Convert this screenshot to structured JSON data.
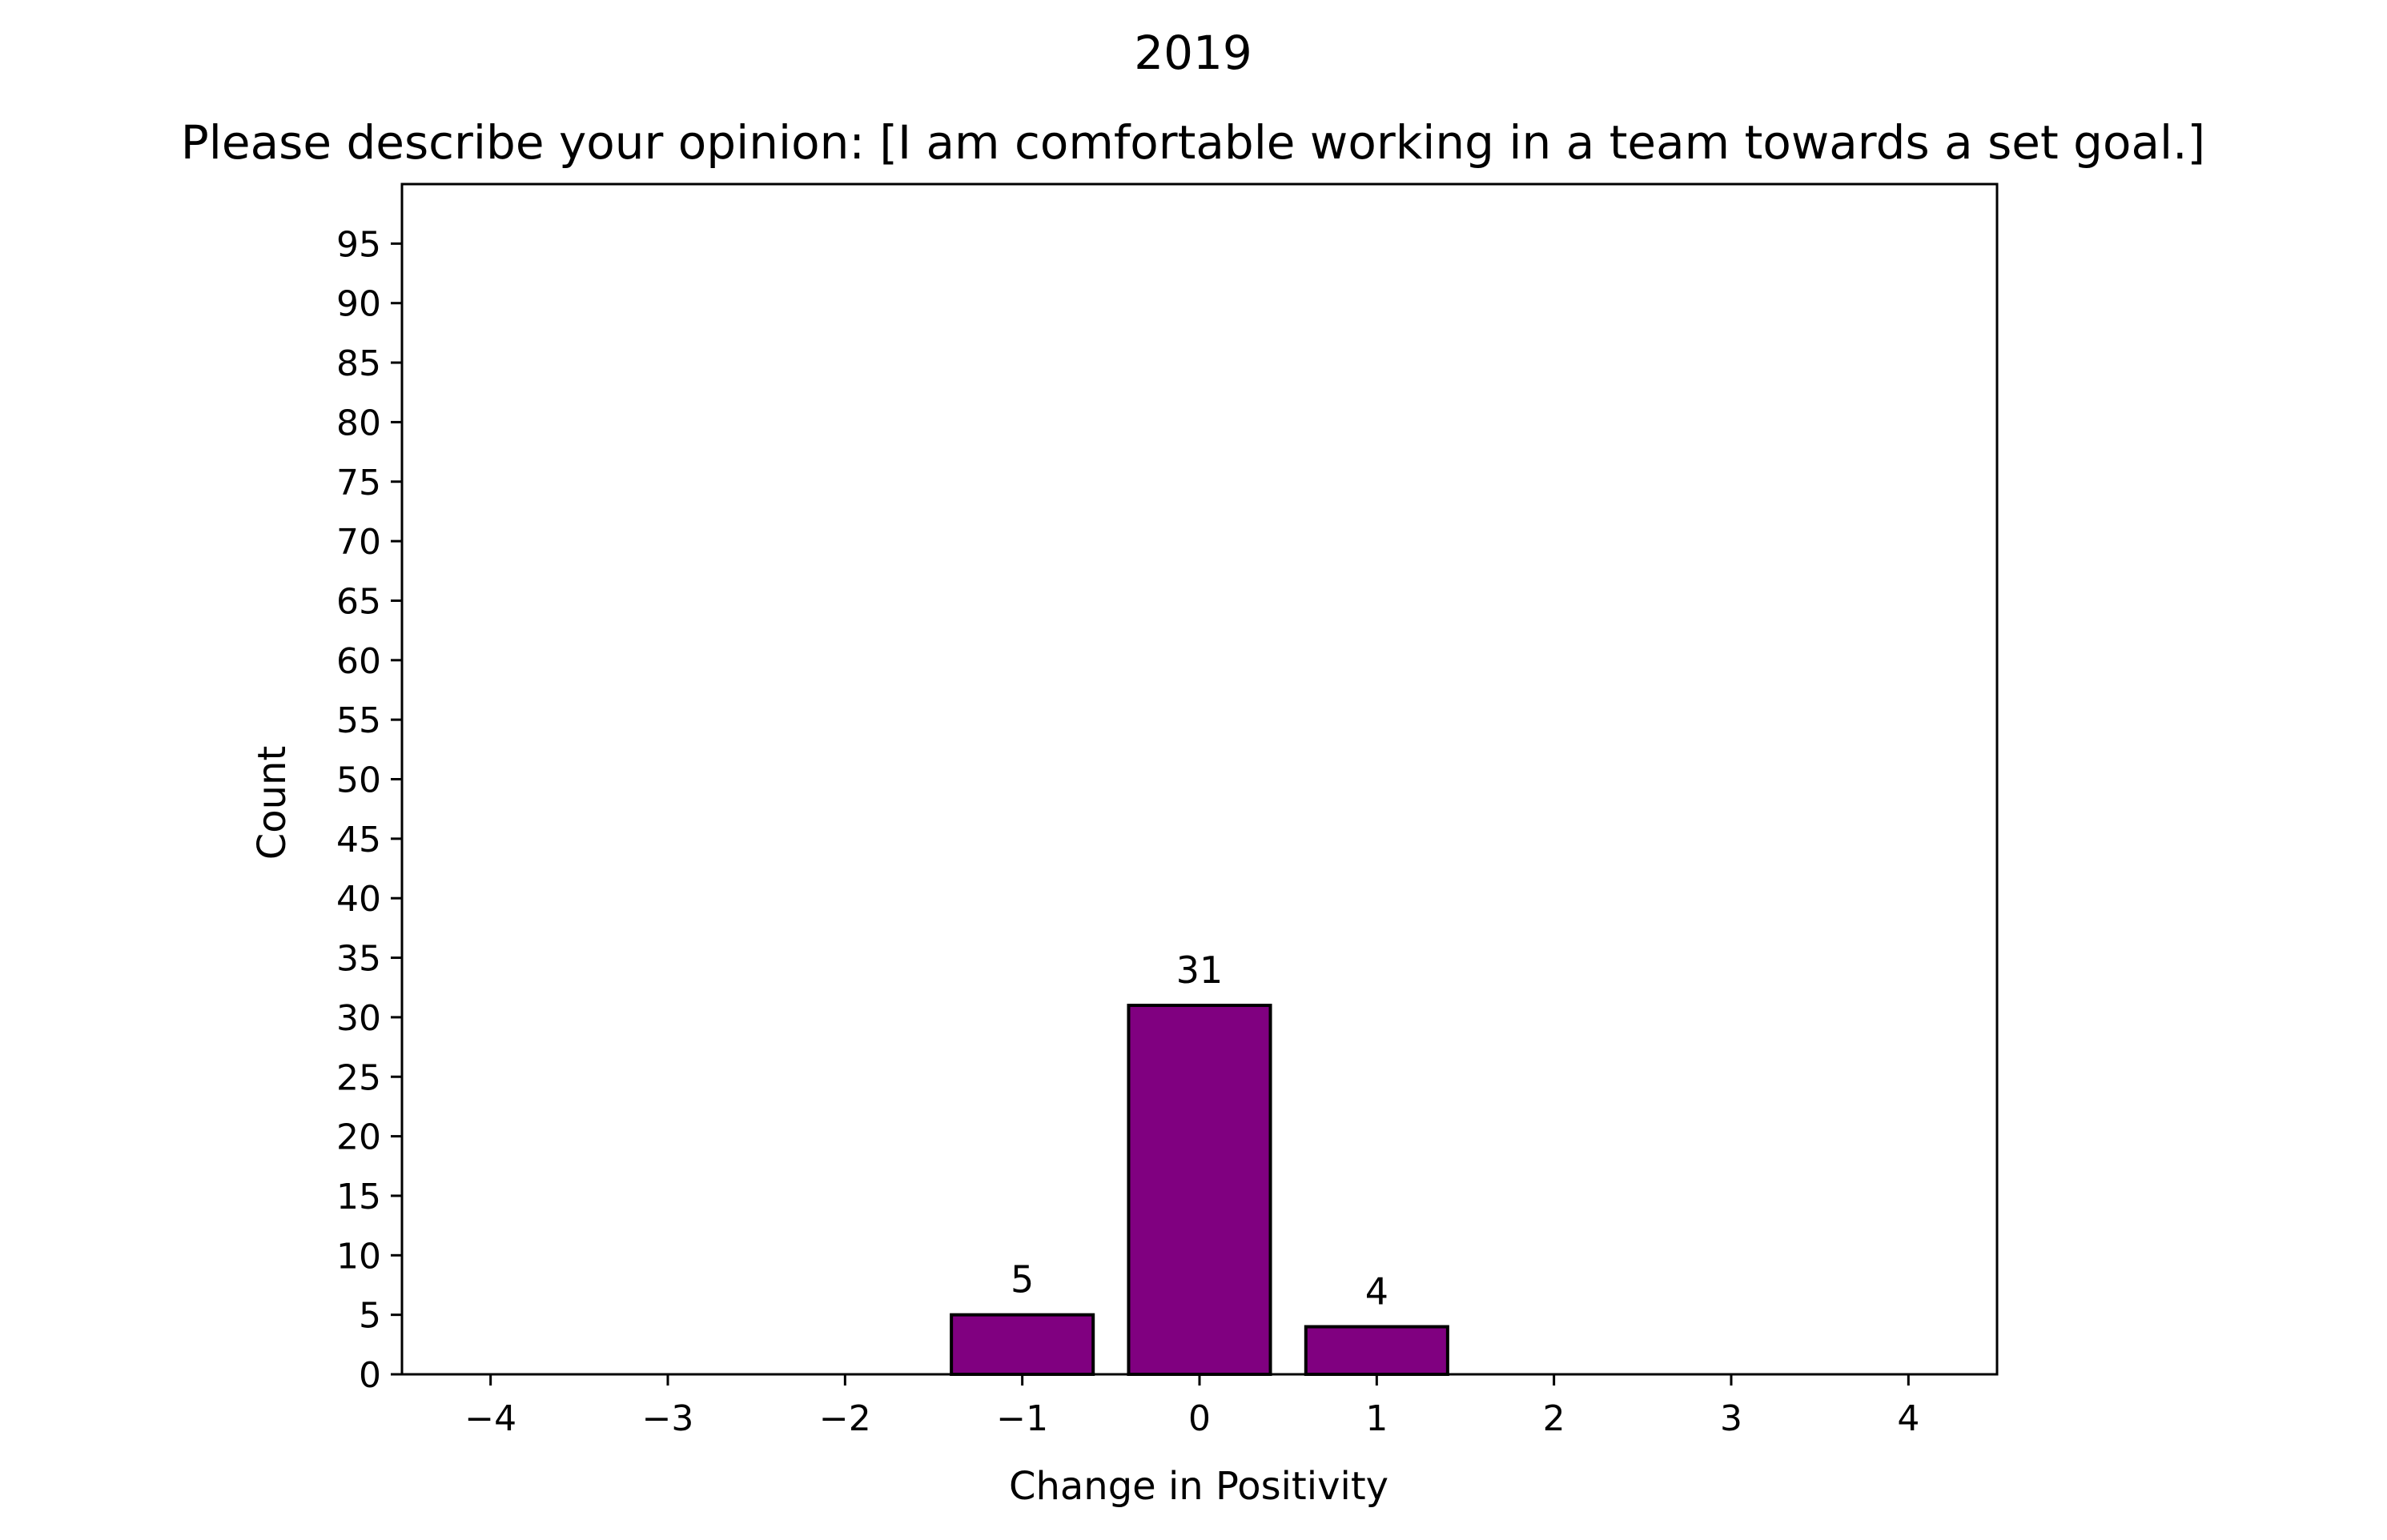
{
  "chart_data": {
    "type": "bar",
    "suptitle": "2019",
    "title": "Please describe your opinion: [I am comfortable working in a team towards a set goal.]",
    "xlabel": "Change in Positivity",
    "ylabel": "Count",
    "x": [
      -4,
      -3,
      -2,
      -1,
      0,
      1,
      2,
      3,
      4
    ],
    "values": [
      0,
      0,
      0,
      5,
      31,
      4,
      0,
      0,
      0
    ],
    "bar_labels": [
      "",
      "",
      "",
      "5",
      "31",
      "4",
      "",
      "",
      ""
    ],
    "xlim": [
      -4.5,
      4.5
    ],
    "ylim": [
      0,
      100
    ],
    "xticks": [
      -4,
      -3,
      -2,
      -1,
      0,
      1,
      2,
      3,
      4
    ],
    "xtick_labels": [
      "−4",
      "−3",
      "−2",
      "−1",
      "0",
      "1",
      "2",
      "3",
      "4"
    ],
    "yticks": [
      0,
      5,
      10,
      15,
      20,
      25,
      30,
      35,
      40,
      45,
      50,
      55,
      60,
      65,
      70,
      75,
      80,
      85,
      90,
      95
    ],
    "ytick_labels": [
      "0",
      "5",
      "10",
      "15",
      "20",
      "25",
      "30",
      "35",
      "40",
      "45",
      "50",
      "55",
      "60",
      "65",
      "70",
      "75",
      "80",
      "85",
      "90",
      "95"
    ],
    "bar_color": "#800080",
    "edge_color": "#000000",
    "grid": false,
    "legend": "none"
  }
}
